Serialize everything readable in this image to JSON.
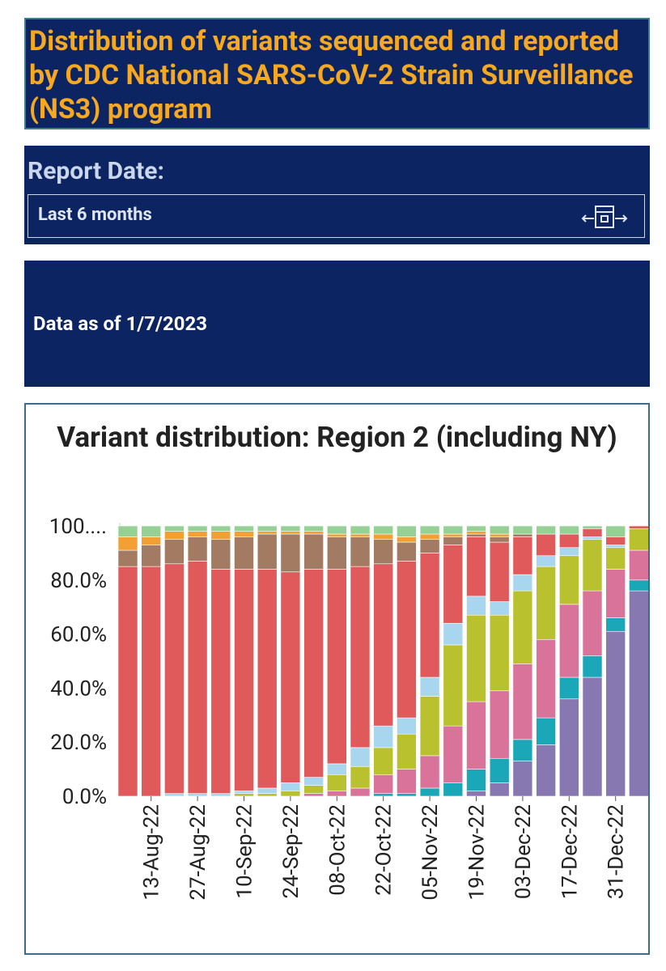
{
  "header": {
    "title": "Distribution of variants sequenced and reported by CDC National SARS-CoV-2 Strain Surveillance (NS3) program"
  },
  "filter": {
    "label": "Report Date:",
    "value": "Last 6 months"
  },
  "note": "Data as of 1/7/2023",
  "chart_data": {
    "type": "stacked_bar",
    "title": "Variant distribution: Region 2 (including NY)",
    "categories": [
      null,
      "13-Aug-22",
      null,
      "27-Aug-22",
      null,
      "10-Sep-22",
      null,
      "24-Sep-22",
      null,
      "08-Oct-22",
      null,
      "22-Oct-22",
      null,
      "05-Nov-22",
      null,
      "19-Nov-22",
      null,
      "03-Dec-22",
      null,
      "17-Dec-22",
      null,
      "31-Dec-22",
      null
    ],
    "series": [
      {
        "color": "#8878b2",
        "values": [
          0,
          0,
          0,
          0,
          0,
          0,
          0,
          0,
          0,
          0,
          0,
          0,
          0,
          0,
          0,
          2,
          5,
          13,
          19,
          36,
          44,
          61,
          76
        ]
      },
      {
        "color": "#1aa8b8",
        "values": [
          0,
          0,
          0,
          0,
          0,
          0,
          0,
          0,
          0,
          0,
          0,
          1,
          1,
          3,
          5,
          8,
          9,
          8,
          10,
          8,
          8,
          5,
          4
        ]
      },
      {
        "color": "#da7399",
        "values": [
          0,
          0,
          0,
          0,
          0,
          0,
          0,
          0,
          1,
          2,
          3,
          7,
          9,
          12,
          21,
          25,
          25,
          28,
          29,
          27,
          24,
          18,
          11
        ]
      },
      {
        "color": "#b9c22e",
        "values": [
          0,
          0,
          0,
          0,
          0,
          1,
          1,
          2,
          3,
          6,
          8,
          10,
          13,
          22,
          30,
          32,
          28,
          27,
          27,
          18,
          19,
          8,
          8
        ]
      },
      {
        "color": "#a9d6ef",
        "values": [
          0,
          0,
          1,
          1,
          1,
          1,
          2,
          3,
          3,
          4,
          7,
          8,
          6,
          7,
          8,
          7,
          5,
          6,
          4,
          3,
          1,
          1,
          0
        ]
      },
      {
        "color": "#e05a5c",
        "values": [
          85,
          85,
          85,
          86,
          83,
          82,
          81,
          78,
          77,
          72,
          67,
          60,
          58,
          46,
          29,
          22,
          22,
          14,
          8,
          5,
          3,
          3,
          1
        ]
      },
      {
        "color": "#a27b62",
        "values": [
          6,
          8,
          9,
          9,
          11,
          12,
          13,
          14,
          13,
          12,
          11,
          9,
          7,
          5,
          3,
          1,
          2,
          1,
          0,
          0,
          0,
          0,
          0
        ]
      },
      {
        "color": "#f2a033",
        "values": [
          5,
          3,
          3,
          2,
          3,
          2,
          1,
          1,
          1,
          1,
          1,
          2,
          2,
          2,
          1,
          1,
          1,
          0,
          0,
          0,
          0,
          0,
          0
        ]
      },
      {
        "color": "#95d195",
        "values": [
          4,
          4,
          2,
          2,
          2,
          2,
          2,
          2,
          2,
          3,
          3,
          3,
          4,
          3,
          3,
          2,
          3,
          3,
          3,
          3,
          1,
          4,
          0
        ]
      }
    ],
    "ylim": [
      0,
      100
    ],
    "yticks": [
      {
        "value": 0,
        "label": "0.0%"
      },
      {
        "value": 20,
        "label": "20.0%"
      },
      {
        "value": 40,
        "label": "40.0%"
      },
      {
        "value": 60,
        "label": "60.0%"
      },
      {
        "value": 80,
        "label": "80.0%"
      },
      {
        "value": 100,
        "label": "100...."
      }
    ],
    "grid": false
  }
}
